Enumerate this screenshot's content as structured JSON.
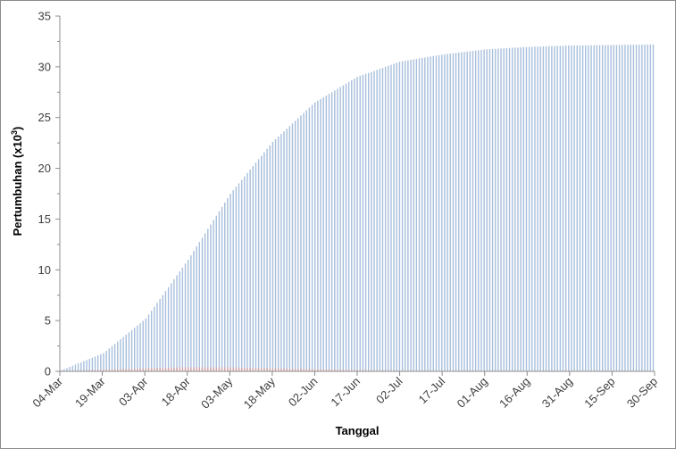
{
  "chart_data": {
    "type": "bar",
    "xlabel": "Tanggal",
    "ylabel": "Pertumbuhan (x10",
    "ylabel_sup": "3",
    "ylabel_close": ")",
    "ylim": [
      0,
      35
    ],
    "yticks": [
      "0",
      "5",
      "10",
      "15",
      "20",
      "25",
      "30",
      "35"
    ],
    "x_start": "2020-03-04",
    "x_end": "2020-09-30",
    "xticks": [
      "04-Mar",
      "19-Mar",
      "03-Apr",
      "18-Apr",
      "03-May",
      "18-May",
      "02-Jun",
      "17-Jun",
      "02-Jul",
      "17-Jul",
      "01-Aug",
      "16-Aug",
      "31-Aug",
      "15-Sep",
      "30-Sep"
    ],
    "grid": false,
    "legend": "none",
    "series": [
      {
        "color": "#a8bfdc",
        "curve": "logistic cumulative growth (thousands)",
        "points": [
          {
            "x": "2020-03-04",
            "y": 0.1
          },
          {
            "x": "2020-03-19",
            "y": 1.8
          },
          {
            "x": "2020-04-03",
            "y": 5.2
          },
          {
            "x": "2020-04-18",
            "y": 11.0
          },
          {
            "x": "2020-05-03",
            "y": 17.5
          },
          {
            "x": "2020-05-18",
            "y": 22.6
          },
          {
            "x": "2020-06-02",
            "y": 26.5
          },
          {
            "x": "2020-06-17",
            "y": 29.0
          },
          {
            "x": "2020-07-02",
            "y": 30.5
          },
          {
            "x": "2020-07-17",
            "y": 31.2
          },
          {
            "x": "2020-08-01",
            "y": 31.7
          },
          {
            "x": "2020-08-16",
            "y": 31.95
          },
          {
            "x": "2020-08-31",
            "y": 32.1
          },
          {
            "x": "2020-09-15",
            "y": 32.15
          },
          {
            "x": "2020-09-30",
            "y": 32.2
          }
        ]
      },
      {
        "color": "#d9a3a3",
        "curve": "small daily increments",
        "points": [
          {
            "x": "2020-03-04",
            "y": 0.0
          },
          {
            "x": "2020-03-19",
            "y": 0.15
          },
          {
            "x": "2020-04-03",
            "y": 0.3
          },
          {
            "x": "2020-04-18",
            "y": 0.4
          },
          {
            "x": "2020-05-03",
            "y": 0.38
          },
          {
            "x": "2020-05-18",
            "y": 0.3
          },
          {
            "x": "2020-06-02",
            "y": 0.2
          },
          {
            "x": "2020-06-17",
            "y": 0.12
          },
          {
            "x": "2020-07-02",
            "y": 0.07
          },
          {
            "x": "2020-07-17",
            "y": 0.04
          },
          {
            "x": "2020-08-01",
            "y": 0.02
          },
          {
            "x": "2020-08-16",
            "y": 0.01
          },
          {
            "x": "2020-08-31",
            "y": 0.0
          },
          {
            "x": "2020-09-15",
            "y": 0.0
          },
          {
            "x": "2020-09-30",
            "y": 0.0
          }
        ]
      }
    ]
  }
}
